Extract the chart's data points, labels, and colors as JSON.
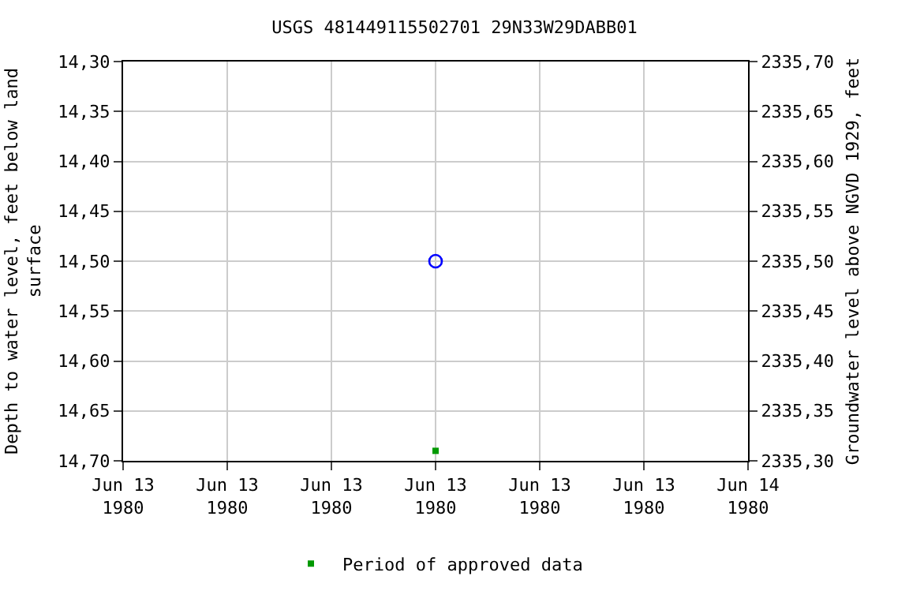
{
  "chart_data": {
    "type": "scatter",
    "title": "USGS 481449115502701 29N33W29DABB01",
    "ylabel": "Depth to water level, feet below land\nsurface",
    "y2label": "Groundwater level above NGVD 1929, feet",
    "x": [
      "1980-06-13T12:00"
    ],
    "series": [
      {
        "color": "#0000ff",
        "values": [
          14.5
        ],
        "marker": "circle"
      },
      {
        "name": "Period of approved data",
        "color": "#009900",
        "values": [
          14.69
        ],
        "marker": "square"
      }
    ],
    "xlim": [
      "1980-06-13T00:00",
      "1980-06-14T00:00"
    ],
    "xticks": [
      {
        "value": "1980-06-13T00:00",
        "label": "Jun 13\n1980"
      },
      {
        "value": "1980-06-13T04:00",
        "label": "Jun 13\n1980"
      },
      {
        "value": "1980-06-13T08:00",
        "label": "Jun 13\n1980"
      },
      {
        "value": "1980-06-13T12:00",
        "label": "Jun 13\n1980"
      },
      {
        "value": "1980-06-13T16:00",
        "label": "Jun 13\n1980"
      },
      {
        "value": "1980-06-13T20:00",
        "label": "Jun 13\n1980"
      },
      {
        "value": "1980-06-14T00:00",
        "label": "Jun 14\n1980"
      }
    ],
    "ylim": [
      14.7,
      14.3
    ],
    "yticks": [
      {
        "value": 14.3,
        "label": "14,30"
      },
      {
        "value": 14.35,
        "label": "14,35"
      },
      {
        "value": 14.4,
        "label": "14,40"
      },
      {
        "value": 14.45,
        "label": "14,45"
      },
      {
        "value": 14.5,
        "label": "14,50"
      },
      {
        "value": 14.55,
        "label": "14,55"
      },
      {
        "value": 14.6,
        "label": "14,60"
      },
      {
        "value": 14.65,
        "label": "14,65"
      },
      {
        "value": 14.7,
        "label": "14,70"
      }
    ],
    "y2lim": [
      2335.3,
      2335.7
    ],
    "y2ticks": [
      {
        "value": 2335.3,
        "label": "2335,30"
      },
      {
        "value": 2335.35,
        "label": "2335,35"
      },
      {
        "value": 2335.4,
        "label": "2335,40"
      },
      {
        "value": 2335.45,
        "label": "2335,45"
      },
      {
        "value": 2335.5,
        "label": "2335,50"
      },
      {
        "value": 2335.55,
        "label": "2335,55"
      },
      {
        "value": 2335.6,
        "label": "2335,60"
      },
      {
        "value": 2335.65,
        "label": "2335,65"
      },
      {
        "value": 2335.7,
        "label": "2335,70"
      }
    ],
    "grid": true,
    "legend": "bottom"
  }
}
